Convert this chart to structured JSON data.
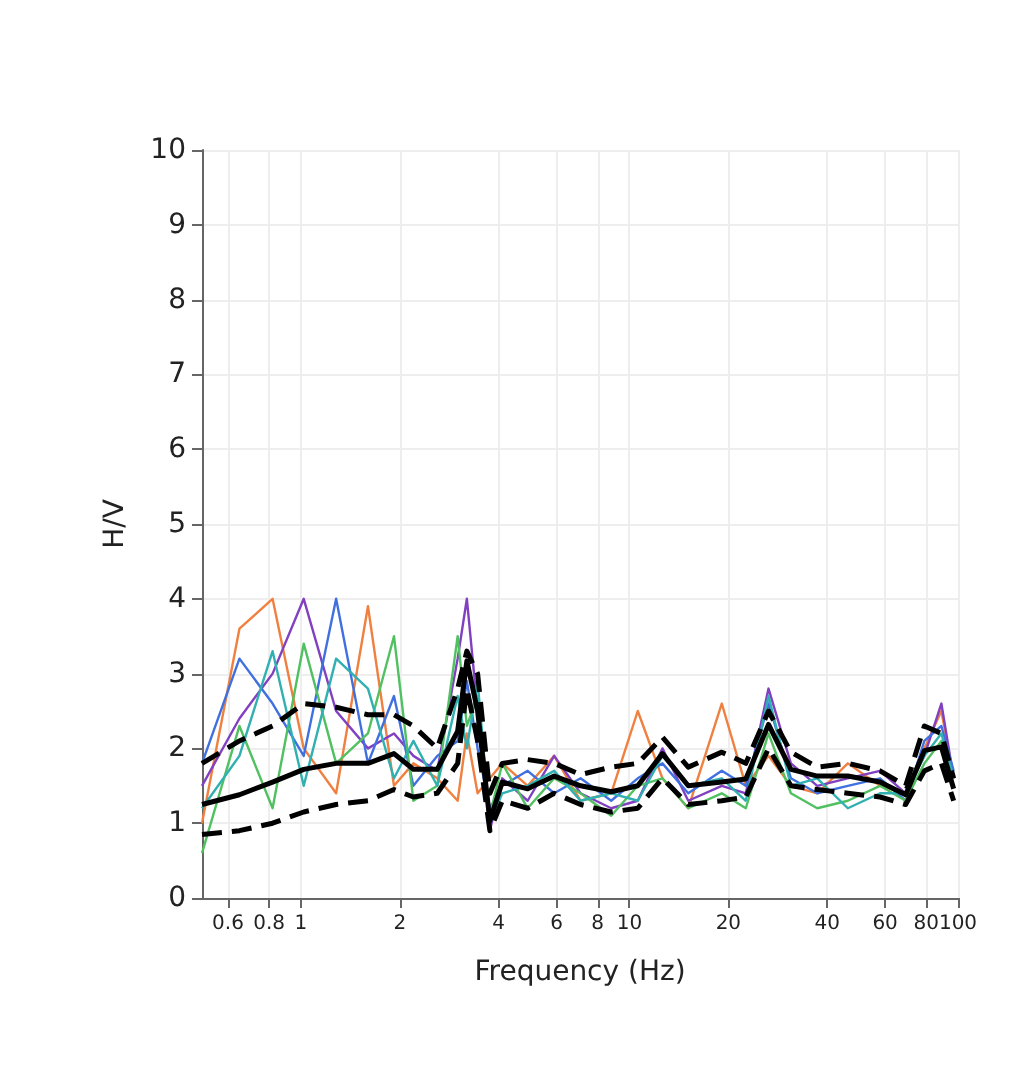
{
  "chart_data": {
    "type": "line",
    "xlabel": "Frequency (Hz)",
    "ylabel": "H/V",
    "log": "x",
    "grid": true,
    "marker": "none",
    "xlim": [
      0.5,
      100
    ],
    "xticks": [
      0.6,
      0.8,
      1,
      2,
      4,
      6,
      8,
      10,
      20,
      40,
      60,
      80,
      100
    ],
    "ylim": [
      0,
      10
    ],
    "yticks": [
      0,
      1,
      2,
      3,
      4,
      5,
      6,
      7,
      8,
      9,
      10
    ],
    "x": [
      0.5,
      0.65,
      0.82,
      1.02,
      1.28,
      1.6,
      1.92,
      2.2,
      2.6,
      3.0,
      3.2,
      3.45,
      3.76,
      4.1,
      4.9,
      5.9,
      7.1,
      8.8,
      10.6,
      12.6,
      15.1,
      19.1,
      22.6,
      26.5,
      31,
      37.3,
      46.2,
      57.9,
      69.3,
      79,
      89,
      97
    ],
    "series": [
      {
        "color": "#f08040",
        "line_style": "solid",
        "values": [
          1.0,
          3.6,
          4.0,
          2.0,
          1.4,
          3.9,
          1.5,
          1.8,
          1.6,
          1.3,
          2.2,
          1.4,
          1.6,
          1.8,
          1.5,
          1.9,
          1.3,
          1.4,
          2.5,
          1.6,
          1.2,
          2.6,
          1.5,
          1.9,
          1.5,
          1.4,
          1.8,
          1.5,
          1.4,
          2.0,
          2.5,
          1.6
        ]
      },
      {
        "color": "#8040c0",
        "line_style": "solid",
        "values": [
          1.5,
          2.4,
          3.0,
          4.0,
          2.5,
          2.0,
          2.2,
          1.9,
          1.7,
          3.2,
          4.0,
          2.5,
          0.9,
          1.6,
          1.3,
          1.9,
          1.4,
          1.2,
          1.3,
          2.0,
          1.3,
          1.5,
          1.4,
          2.8,
          1.8,
          1.5,
          1.6,
          1.7,
          1.4,
          1.9,
          2.6,
          1.6
        ]
      },
      {
        "color": "#4070e0",
        "line_style": "solid",
        "values": [
          1.8,
          3.2,
          2.6,
          1.9,
          4.0,
          1.8,
          2.7,
          1.5,
          1.9,
          2.1,
          2.9,
          2.0,
          1.2,
          1.5,
          1.7,
          1.4,
          1.6,
          1.3,
          1.6,
          1.8,
          1.4,
          1.7,
          1.5,
          2.6,
          1.6,
          1.4,
          1.5,
          1.6,
          1.3,
          2.1,
          2.3,
          1.7
        ]
      },
      {
        "color": "#50c060",
        "line_style": "solid",
        "values": [
          0.6,
          2.3,
          1.2,
          3.4,
          1.8,
          2.2,
          3.5,
          1.3,
          1.5,
          3.5,
          2.3,
          2.7,
          1.1,
          1.8,
          1.2,
          1.6,
          1.4,
          1.1,
          1.5,
          1.6,
          1.2,
          1.4,
          1.2,
          2.2,
          1.4,
          1.2,
          1.3,
          1.5,
          1.3,
          1.8,
          2.1,
          1.5
        ]
      },
      {
        "color": "#30b0b0",
        "line_style": "solid",
        "values": [
          1.2,
          1.9,
          3.3,
          1.5,
          3.2,
          2.8,
          1.6,
          2.1,
          1.5,
          2.7,
          2.0,
          2.9,
          1.0,
          1.4,
          1.5,
          1.7,
          1.3,
          1.4,
          1.3,
          1.9,
          1.5,
          1.6,
          1.3,
          2.7,
          1.5,
          1.6,
          1.2,
          1.4,
          1.4,
          1.9,
          2.2,
          1.6
        ]
      },
      {
        "color": "#000000",
        "line_style": "solid",
        "values": [
          1.25,
          1.38,
          1.55,
          1.72,
          1.8,
          1.8,
          1.93,
          1.72,
          1.72,
          2.23,
          3.17,
          2.5,
          1.03,
          1.55,
          1.46,
          1.63,
          1.5,
          1.42,
          1.5,
          1.93,
          1.5,
          1.55,
          1.59,
          2.32,
          1.72,
          1.63,
          1.63,
          1.55,
          1.38,
          1.97,
          2.02,
          1.46
        ]
      },
      {
        "color": "#000000",
        "line_style": "dashed",
        "values": [
          1.8,
          2.1,
          2.3,
          2.6,
          2.55,
          2.45,
          2.45,
          2.3,
          2.0,
          2.8,
          3.3,
          3.0,
          1.4,
          1.8,
          1.85,
          1.8,
          1.65,
          1.75,
          1.8,
          2.15,
          1.75,
          1.95,
          1.8,
          2.5,
          1.95,
          1.75,
          1.8,
          1.7,
          1.5,
          2.3,
          2.2,
          1.6
        ]
      },
      {
        "color": "#000000",
        "line_style": "dashed",
        "values": [
          0.85,
          0.9,
          1.0,
          1.15,
          1.25,
          1.3,
          1.45,
          1.35,
          1.4,
          1.8,
          2.8,
          2.1,
          0.9,
          1.3,
          1.2,
          1.4,
          1.25,
          1.15,
          1.2,
          1.6,
          1.25,
          1.3,
          1.35,
          2.0,
          1.5,
          1.45,
          1.4,
          1.35,
          1.25,
          1.7,
          1.8,
          1.3
        ]
      }
    ]
  }
}
